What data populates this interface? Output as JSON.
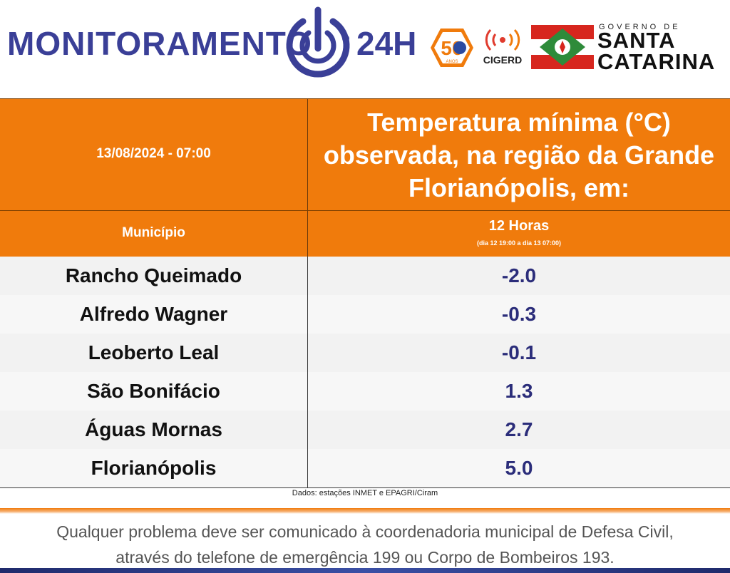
{
  "header": {
    "brand_left": "MONITORAMENTO",
    "brand_right": "24H",
    "logo_50": "50",
    "logo_50_sub": "ANOS",
    "cigerd_label": "CIGERD",
    "gov_small": "GOVERNO DE",
    "gov_line1": "SANTA",
    "gov_line2": "CATARINA",
    "colors": {
      "brand": "#3a3f97",
      "orange": "#f07b0c"
    }
  },
  "table": {
    "date": "13/08/2024 - 07:00",
    "title": "Temperatura mínima (°C) observada, na região da Grande Florianópolis, em:",
    "col_municipio": "Município",
    "col_hours": "12 Horas",
    "col_period": "(dia 12 19:00 a dia 13 07:00)",
    "rows": [
      {
        "name": "Rancho Queimado",
        "value": "-2.0"
      },
      {
        "name": "Alfredo Wagner",
        "value": "-0.3"
      },
      {
        "name": "Leoberto Leal",
        "value": "-0.1"
      },
      {
        "name": "São Bonifácio",
        "value": "1.3"
      },
      {
        "name": "Águas Mornas",
        "value": "2.7"
      },
      {
        "name": "Florianópolis",
        "value": "5.0"
      }
    ],
    "source": "Dados: estações INMET e EPAGRI/Ciram"
  },
  "footer": {
    "line1": "Qualquer problema deve ser comunicado à coordenadoria municipal de Defesa Civil,",
    "line2": "através do telefone de emergência 199 ou Corpo de Bombeiros 193."
  }
}
